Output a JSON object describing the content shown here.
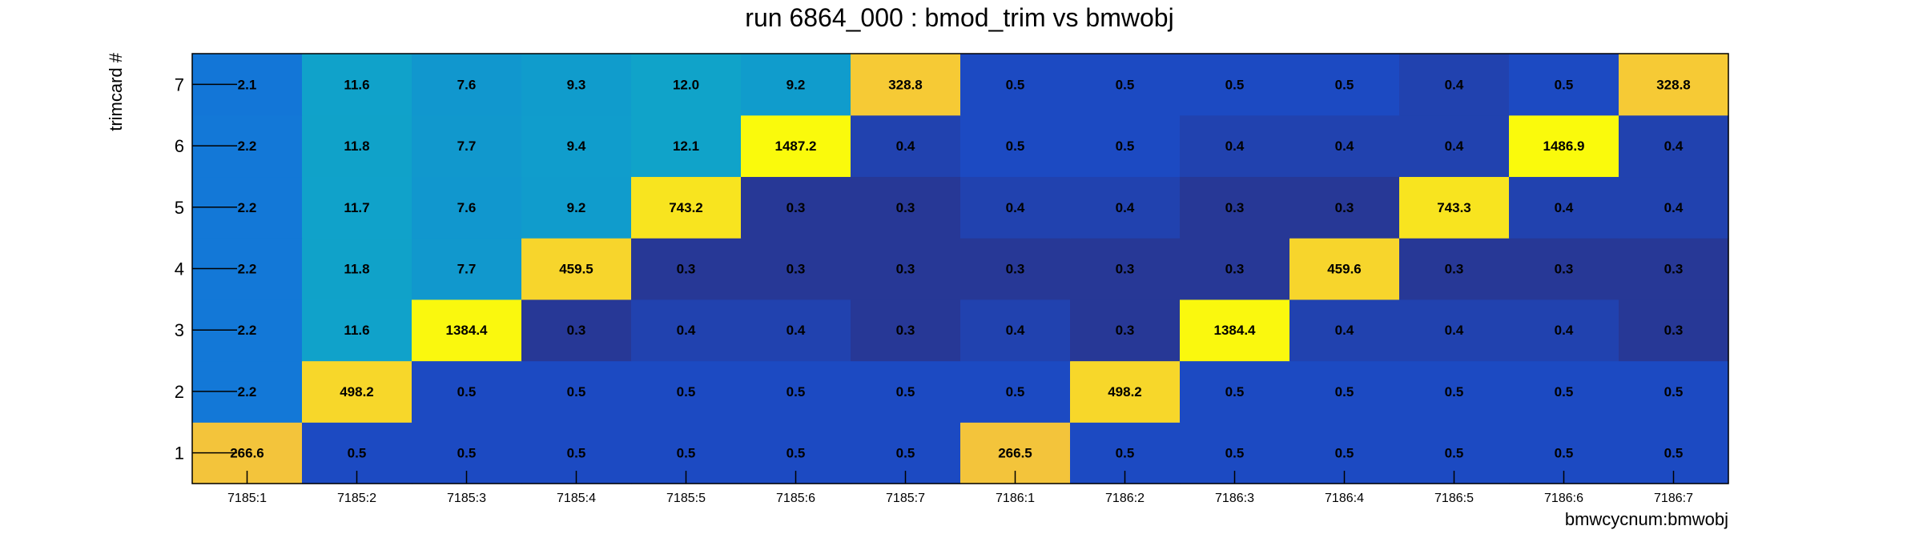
{
  "chart_data": {
    "type": "heatmap",
    "title": "run 6864_000 : bmod_trim vs bmwobj",
    "xlabel": "bmwcycnum:bmwobj",
    "ylabel": "trimcard #",
    "x_categories": [
      "7185:1",
      "7185:2",
      "7185:3",
      "7185:4",
      "7185:5",
      "7185:6",
      "7185:7",
      "7186:1",
      "7186:2",
      "7186:3",
      "7186:4",
      "7186:5",
      "7186:6",
      "7186:7"
    ],
    "y_categories": [
      "1",
      "2",
      "3",
      "4",
      "5",
      "6",
      "7"
    ],
    "values": [
      [
        "266.6",
        "0.5",
        "0.5",
        "0.5",
        "0.5",
        "0.5",
        "0.5",
        "266.5",
        "0.5",
        "0.5",
        "0.5",
        "0.5",
        "0.5",
        "0.5"
      ],
      [
        "2.2",
        "498.2",
        "0.5",
        "0.5",
        "0.5",
        "0.5",
        "0.5",
        "0.5",
        "498.2",
        "0.5",
        "0.5",
        "0.5",
        "0.5",
        "0.5"
      ],
      [
        "2.2",
        "11.6",
        "1384.4",
        "0.3",
        "0.4",
        "0.4",
        "0.3",
        "0.4",
        "0.3",
        "1384.4",
        "0.4",
        "0.4",
        "0.4",
        "0.3"
      ],
      [
        "2.2",
        "11.8",
        "7.7",
        "459.5",
        "0.3",
        "0.3",
        "0.3",
        "0.3",
        "0.3",
        "0.3",
        "459.6",
        "0.3",
        "0.3",
        "0.3"
      ],
      [
        "2.2",
        "11.7",
        "7.6",
        "9.2",
        "743.2",
        "0.3",
        "0.3",
        "0.4",
        "0.4",
        "0.3",
        "0.3",
        "743.3",
        "0.4",
        "0.4"
      ],
      [
        "2.2",
        "11.8",
        "7.7",
        "9.4",
        "12.1",
        "1487.2",
        "0.4",
        "0.5",
        "0.5",
        "0.4",
        "0.4",
        "0.4",
        "1486.9",
        "0.4"
      ],
      [
        "2.1",
        "11.6",
        "7.6",
        "9.3",
        "12.0",
        "9.2",
        "328.8",
        "0.5",
        "0.5",
        "0.5",
        "0.5",
        "0.4",
        "0.5",
        "328.8"
      ]
    ],
    "grid": false,
    "colormap": "viridis-like (dark blue → teal → yellow)"
  }
}
